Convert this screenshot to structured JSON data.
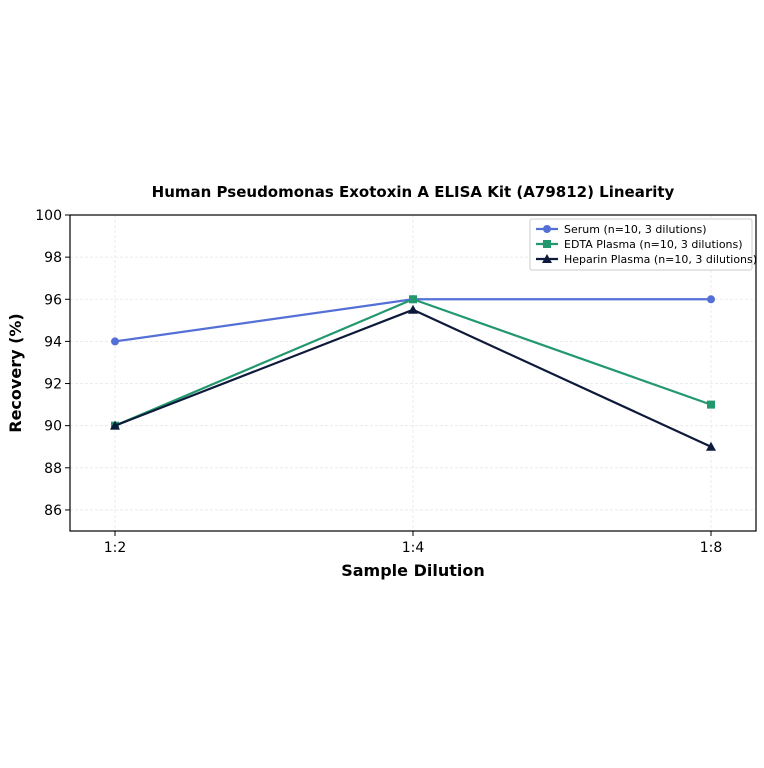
{
  "chart_data": {
    "type": "line",
    "title": "Human Pseudomonas Exotoxin A ELISA Kit (A79812) Linearity",
    "xlabel": "Sample Dilution",
    "ylabel": "Recovery (%)",
    "categories": [
      "1:2",
      "1:4",
      "1:8"
    ],
    "ylim": [
      85,
      100
    ],
    "yticks": [
      86,
      88,
      90,
      92,
      94,
      96,
      98,
      100
    ],
    "grid": true,
    "legend_position": "top-right",
    "series": [
      {
        "name": "Serum (n=10, 3 dilutions)",
        "values": [
          94,
          96,
          96
        ],
        "color": "#5470d6",
        "marker": "circle"
      },
      {
        "name": "EDTA Plasma (n=10, 3 dilutions)",
        "values": [
          90,
          96,
          91
        ],
        "color": "#23986f",
        "marker": "square"
      },
      {
        "name": "Heparin Plasma (n=10, 3 dilutions)",
        "values": [
          90,
          95.5,
          89
        ],
        "color": "#0e1a3a",
        "marker": "triangle"
      }
    ]
  }
}
